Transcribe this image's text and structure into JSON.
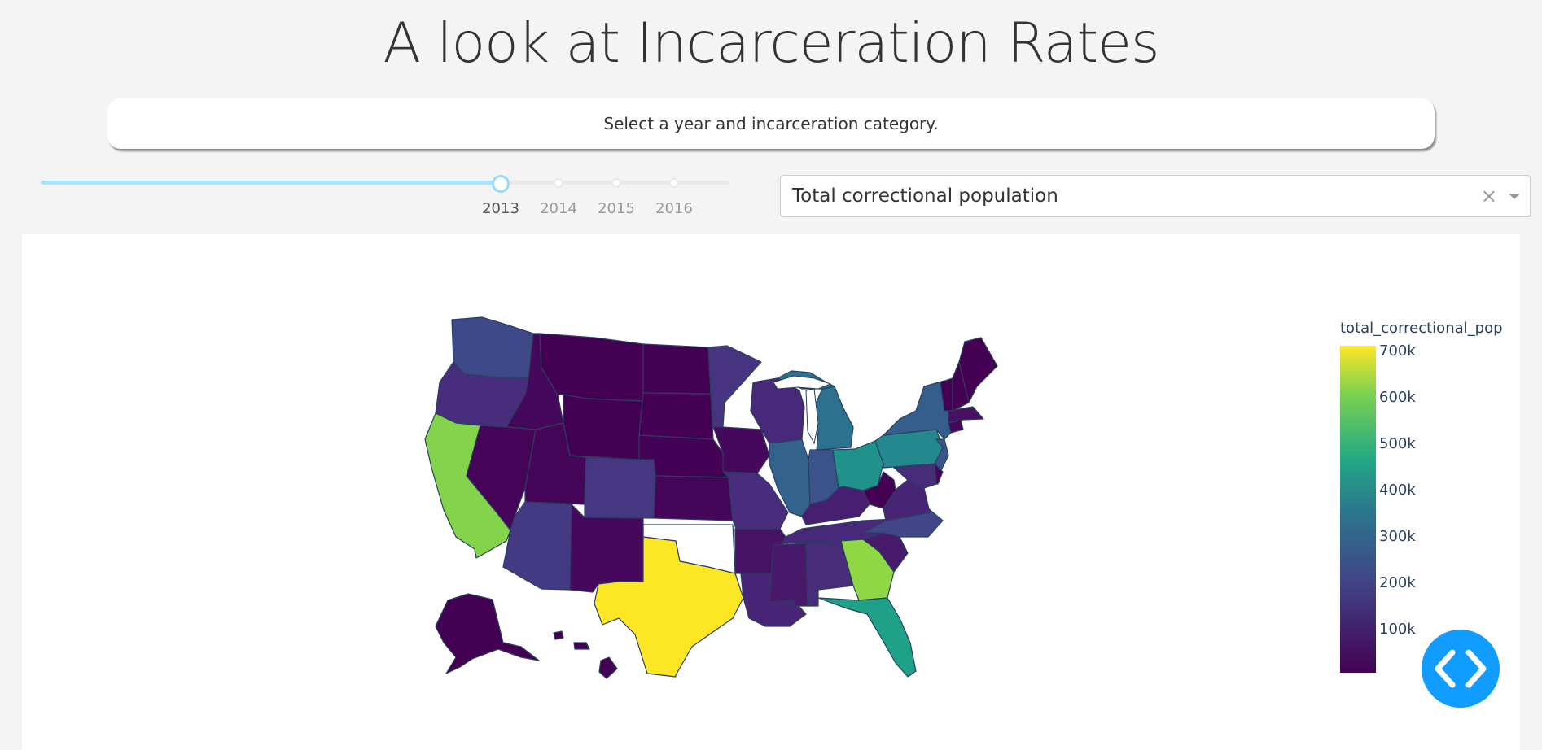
{
  "title": "A look at Incarceration Rates",
  "instruction": "Select a year and incarceration category.",
  "slider": {
    "marks": [
      "2013",
      "2014",
      "2015",
      "2016"
    ],
    "selected": "2013"
  },
  "dropdown": {
    "value": "Total correctional population",
    "clear_glyph": "×"
  },
  "map": {
    "colorbar_title": "total_correctional_pop",
    "colorscale": "Viridis",
    "colorbar_ticks": [
      "700k",
      "600k",
      "500k",
      "400k",
      "300k",
      "200k",
      "100k"
    ],
    "colors": {
      "min": "#440154",
      "low": "#482878",
      "mid_low": "#3e4989",
      "mid": "#31688e",
      "mid_high": "#26828e",
      "teal": "#1f9e89",
      "green": "#7ad151",
      "max": "#fde725",
      "no_data": "#ffffff"
    },
    "states": [
      {
        "name": "Washington",
        "color": "#3e4989"
      },
      {
        "name": "Oregon",
        "color": "#472d7b"
      },
      {
        "name": "California",
        "color": "#84d44b"
      },
      {
        "name": "Idaho",
        "color": "#46085c"
      },
      {
        "name": "Nevada",
        "color": "#450457"
      },
      {
        "name": "Montana",
        "color": "#440154"
      },
      {
        "name": "Wyoming",
        "color": "#440154"
      },
      {
        "name": "Utah",
        "color": "#45065a"
      },
      {
        "name": "Arizona",
        "color": "#443983"
      },
      {
        "name": "Colorado",
        "color": "#453781"
      },
      {
        "name": "New Mexico",
        "color": "#46085c"
      },
      {
        "name": "North Dakota",
        "color": "#440154"
      },
      {
        "name": "South Dakota",
        "color": "#440154"
      },
      {
        "name": "Nebraska",
        "color": "#440256"
      },
      {
        "name": "Kansas",
        "color": "#450559"
      },
      {
        "name": "Oklahoma",
        "color": "#ffffff"
      },
      {
        "name": "Texas",
        "color": "#fde725"
      },
      {
        "name": "Minnesota",
        "color": "#463480"
      },
      {
        "name": "Iowa",
        "color": "#46085c"
      },
      {
        "name": "Missouri",
        "color": "#472d7b"
      },
      {
        "name": "Arkansas",
        "color": "#471365"
      },
      {
        "name": "Louisiana",
        "color": "#482576"
      },
      {
        "name": "Wisconsin",
        "color": "#482878"
      },
      {
        "name": "Illinois",
        "color": "#33638d"
      },
      {
        "name": "Michigan",
        "color": "#2c728e"
      },
      {
        "name": "Indiana",
        "color": "#3b528b"
      },
      {
        "name": "Ohio",
        "color": "#20928c"
      },
      {
        "name": "Kentucky",
        "color": "#481f70"
      },
      {
        "name": "Tennessee",
        "color": "#482979"
      },
      {
        "name": "Mississippi",
        "color": "#48186a"
      },
      {
        "name": "Alabama",
        "color": "#472c7a"
      },
      {
        "name": "Georgia",
        "color": "#8fd744"
      },
      {
        "name": "Florida",
        "color": "#1fa088"
      },
      {
        "name": "South Carolina",
        "color": "#481a6c"
      },
      {
        "name": "North Carolina",
        "color": "#404688"
      },
      {
        "name": "Virginia",
        "color": "#482475"
      },
      {
        "name": "West Virginia",
        "color": "#440154"
      },
      {
        "name": "Pennsylvania",
        "color": "#23898e"
      },
      {
        "name": "New York",
        "color": "#355e8d"
      },
      {
        "name": "New Jersey",
        "color": "#3a548c"
      },
      {
        "name": "Maryland",
        "color": "#472c7a"
      },
      {
        "name": "Delaware",
        "color": "#450559"
      },
      {
        "name": "Connecticut",
        "color": "#46085c"
      },
      {
        "name": "Massachusetts",
        "color": "#471063"
      },
      {
        "name": "Vermont",
        "color": "#440154"
      },
      {
        "name": "New Hampshire",
        "color": "#440154"
      },
      {
        "name": "Maine",
        "color": "#440154"
      },
      {
        "name": "Alaska",
        "color": "#440154"
      },
      {
        "name": "Hawaii",
        "color": "#440154"
      }
    ]
  },
  "fab": {
    "icon": "code-icon"
  }
}
